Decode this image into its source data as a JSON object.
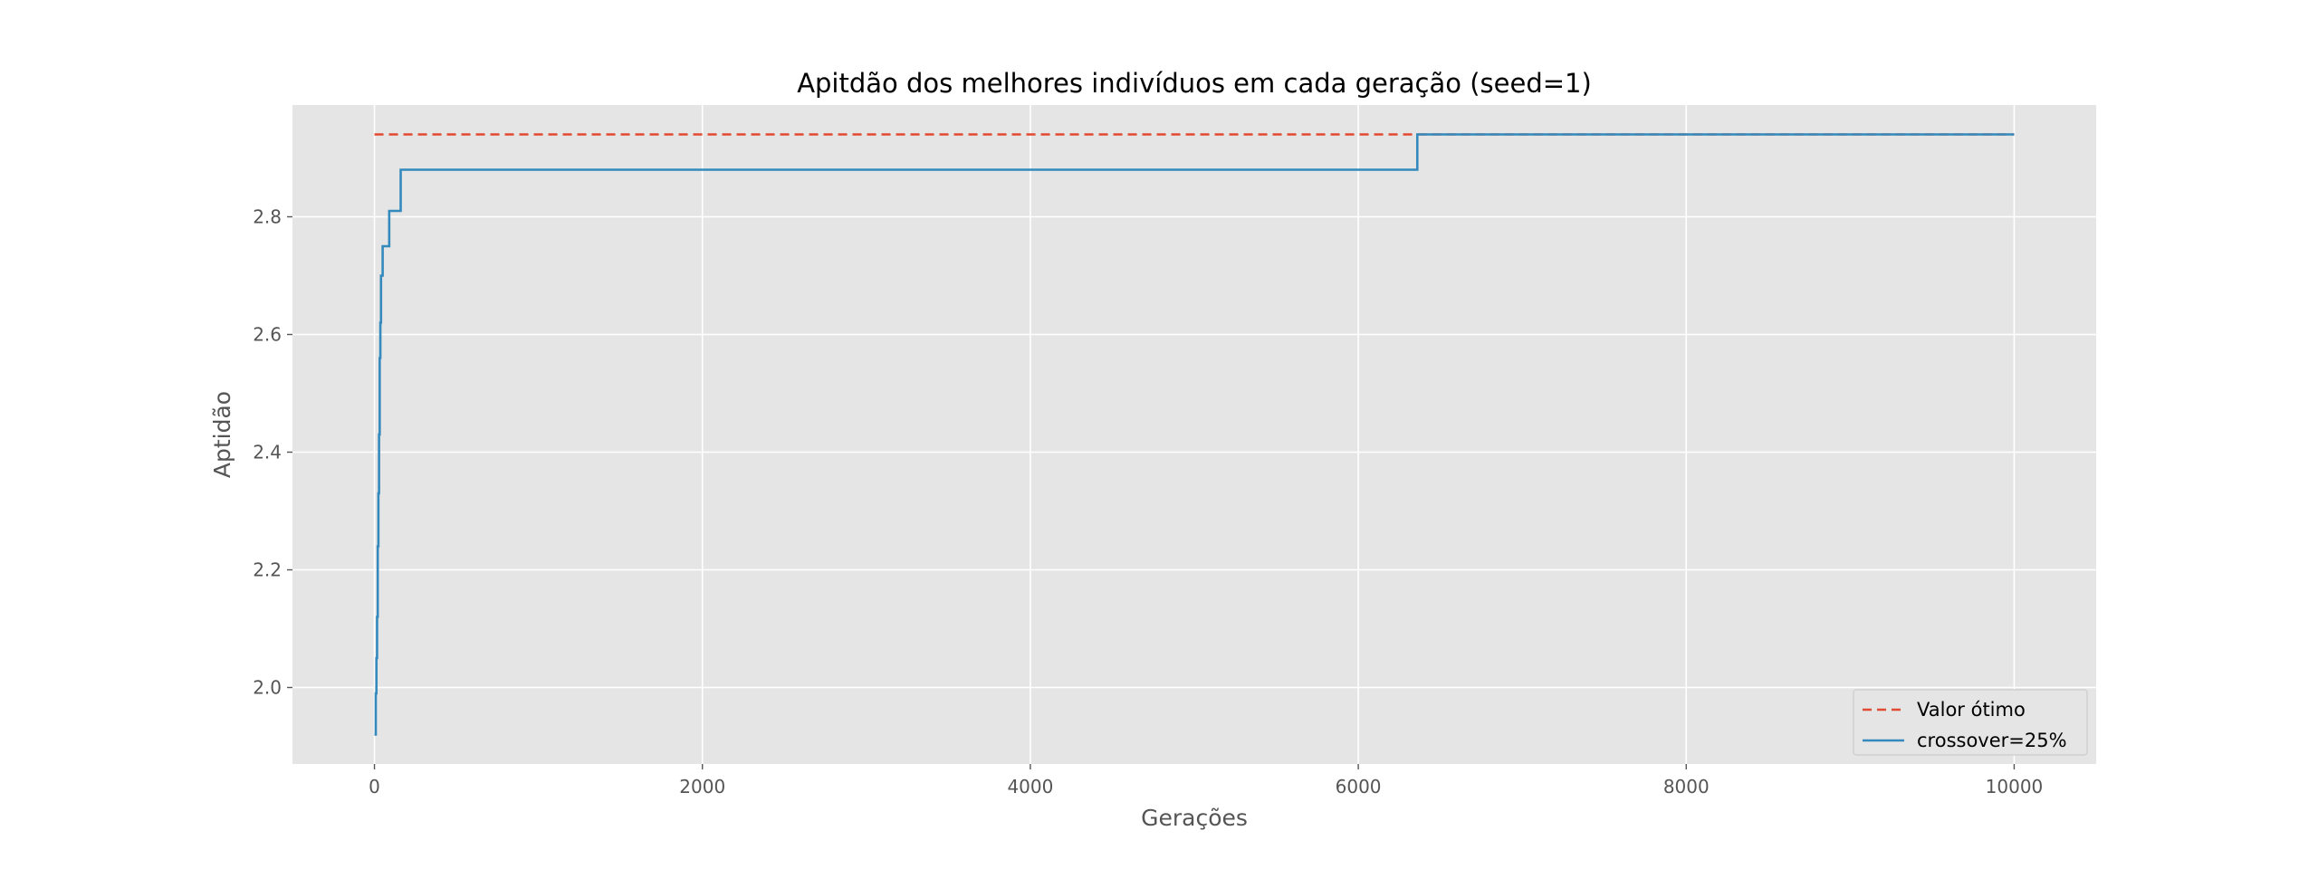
{
  "chart_data": {
    "type": "line",
    "title": "Apitdão dos melhores indivíduos em cada geração (seed=1)",
    "xlabel": "Gerações",
    "ylabel": "Aptidão",
    "xlim": [
      -500,
      10500
    ],
    "ylim": [
      1.87,
      2.99
    ],
    "x_ticks": [
      0,
      2000,
      4000,
      6000,
      8000,
      10000
    ],
    "x_tick_labels": [
      "0",
      "2000",
      "4000",
      "6000",
      "8000",
      "10000"
    ],
    "y_ticks": [
      2.0,
      2.2,
      2.4,
      2.6,
      2.8
    ],
    "y_tick_labels": [
      "2.0",
      "2.2",
      "2.4",
      "2.6",
      "2.8"
    ],
    "grid": true,
    "legend_position": "bottom-right",
    "series": [
      {
        "name": "Valor ótimo",
        "style": "dashed",
        "color": "#e24a33",
        "x": [
          0,
          10000
        ],
        "y": [
          2.94,
          2.94
        ]
      },
      {
        "name": "crossover=25%",
        "style": "solid-step",
        "color": "#348abd",
        "x": [
          0,
          8,
          12,
          16,
          20,
          24,
          28,
          32,
          36,
          40,
          50,
          60,
          90,
          160,
          6360,
          10000
        ],
        "y": [
          1.92,
          1.99,
          2.05,
          2.12,
          2.24,
          2.33,
          2.43,
          2.56,
          2.62,
          2.7,
          2.75,
          2.75,
          2.81,
          2.88,
          2.94,
          2.94
        ]
      }
    ]
  }
}
